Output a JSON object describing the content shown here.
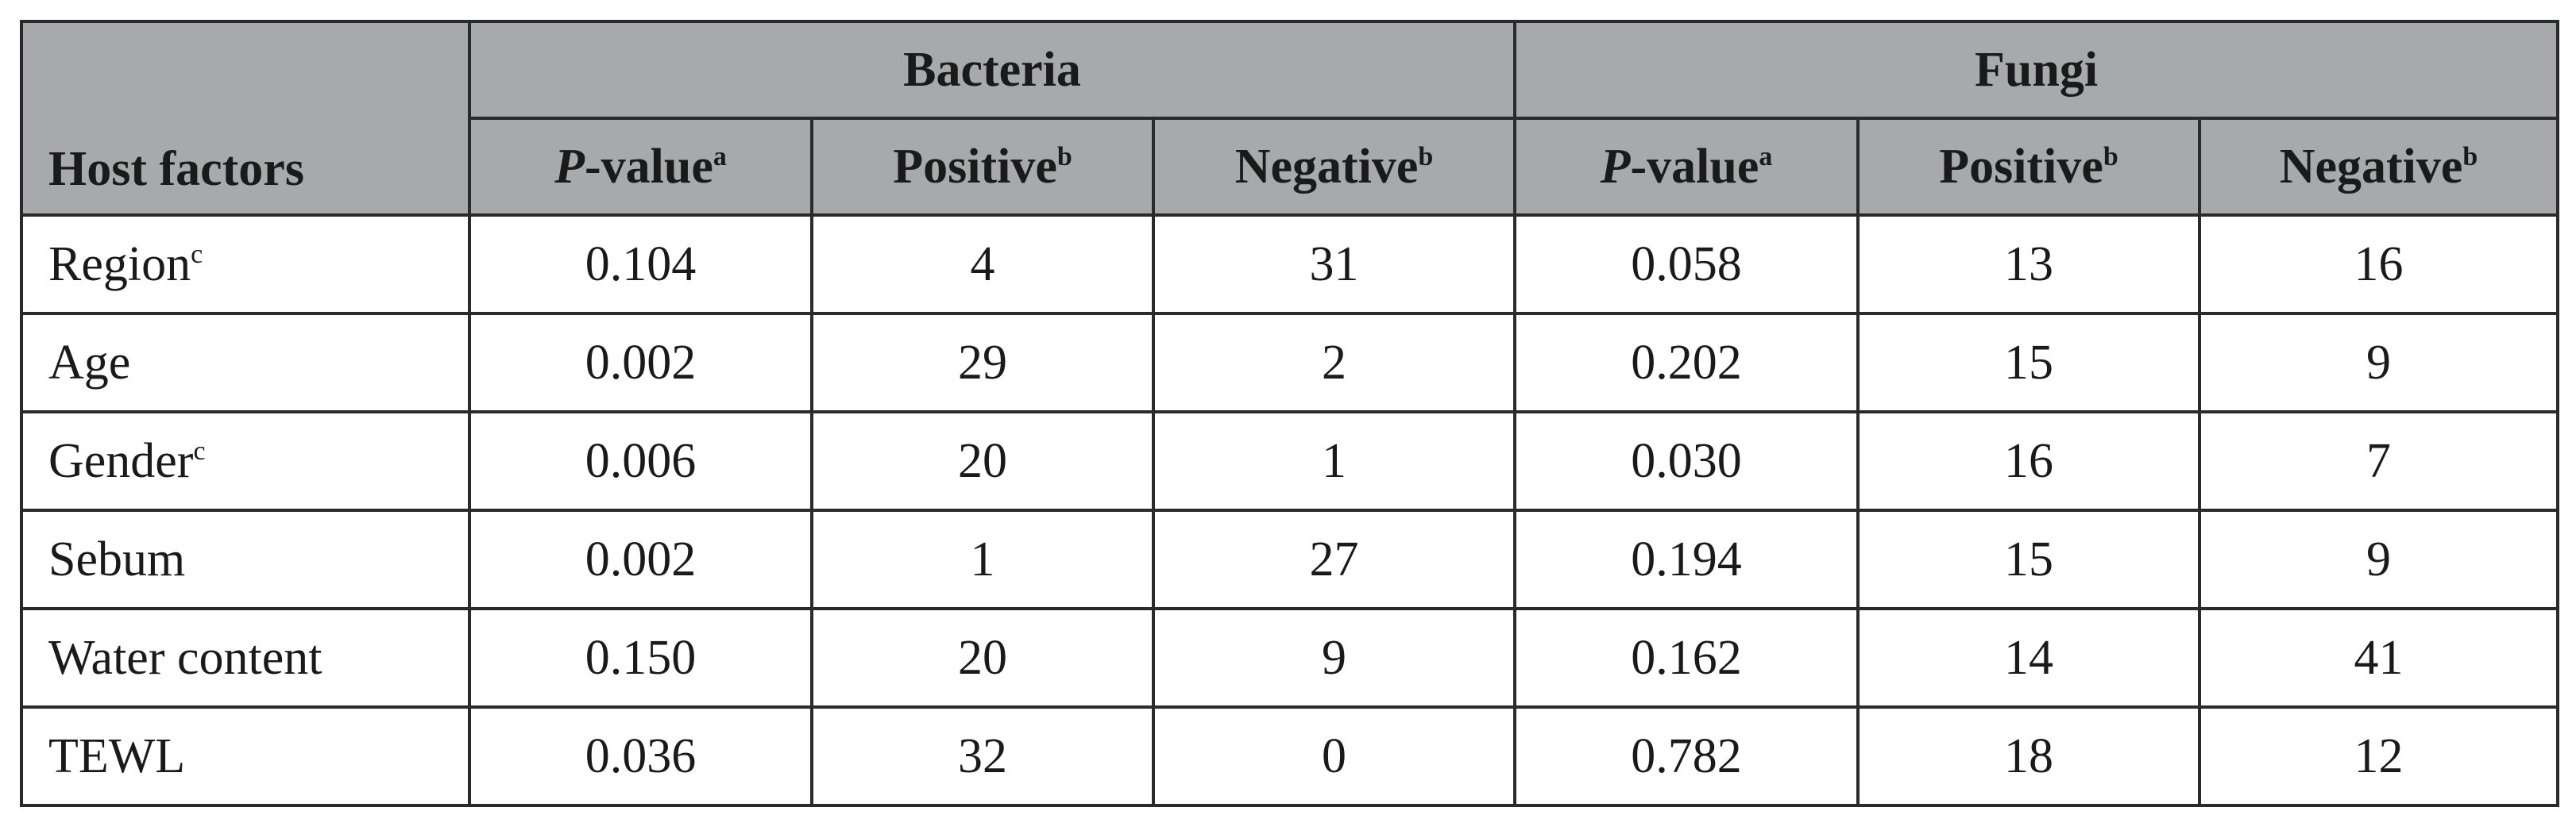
{
  "table": {
    "header": {
      "host_factors": "Host factors",
      "groups": [
        "Bacteria",
        "Fungi"
      ],
      "columns": [
        {
          "italic": "P",
          "text": "-value",
          "sup": "a"
        },
        {
          "text": "Positive",
          "sup": "b"
        },
        {
          "text": "Negative",
          "sup": "b"
        },
        {
          "italic": "P",
          "text": "-value",
          "sup": "a"
        },
        {
          "text": "Positive",
          "sup": "b"
        },
        {
          "text": "Negative",
          "sup": "b"
        }
      ]
    },
    "rows": [
      {
        "factor": "Region",
        "sup": "c",
        "cells": [
          "0.104",
          "4",
          "31",
          "0.058",
          "13",
          "16"
        ]
      },
      {
        "factor": "Age",
        "cells": [
          "0.002",
          "29",
          "2",
          "0.202",
          "15",
          "9"
        ]
      },
      {
        "factor": "Gender",
        "sup": "c",
        "cells": [
          "0.006",
          "20",
          "1",
          "0.030",
          "16",
          "7"
        ]
      },
      {
        "factor": "Sebum",
        "cells": [
          "0.002",
          "1",
          "27",
          "0.194",
          "15",
          "9"
        ]
      },
      {
        "factor": "Water content",
        "cells": [
          "0.150",
          "20",
          "9",
          "0.162",
          "14",
          "41"
        ]
      },
      {
        "factor": "TEWL",
        "cells": [
          "0.036",
          "32",
          "0",
          "0.782",
          "18",
          "12"
        ]
      }
    ]
  }
}
